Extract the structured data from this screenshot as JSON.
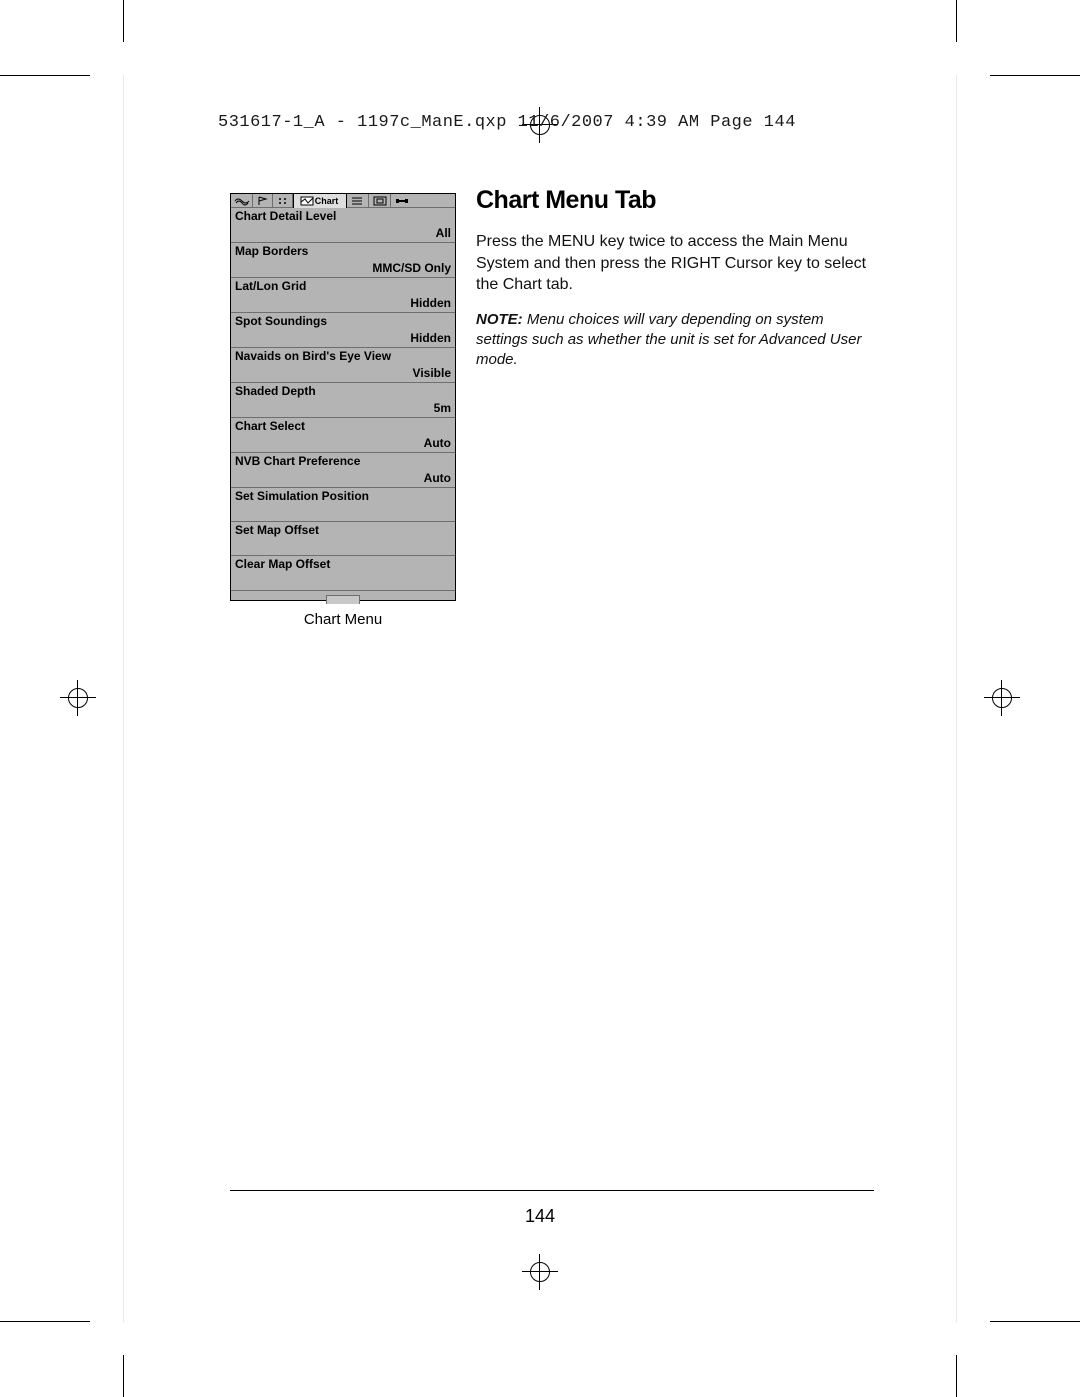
{
  "slug": "531617-1_A - 1197c_ManE.qxp  11/6/2007  4:39 AM  Page 144",
  "title": "Chart Menu Tab",
  "instruction": "Press the MENU key twice to access the Main Menu System and then press the RIGHT Cursor key to select the Chart tab.",
  "note_label": "NOTE:",
  "note_body": "Menu choices will vary depending on system settings such as whether the unit is set for Advanced User mode.",
  "page_number": "144",
  "menu_caption": "Chart Menu",
  "active_tab_label": "Chart",
  "colors": {
    "panel_bg": "#b4b4b4",
    "panel_border": "#000000",
    "divider": "#6e6e6e",
    "active_tab_bg": "#dedede"
  },
  "menu_items": [
    {
      "label": "Chart Detail Level",
      "value": "All"
    },
    {
      "label": "Map Borders",
      "value": "MMC/SD Only"
    },
    {
      "label": "Lat/Lon Grid",
      "value": "Hidden"
    },
    {
      "label": "Spot Soundings",
      "value": "Hidden"
    },
    {
      "label": "Navaids on Bird's Eye View",
      "value": "Visible"
    },
    {
      "label": "Shaded Depth",
      "value": "5m"
    },
    {
      "label": "Chart Select",
      "value": "Auto"
    },
    {
      "label": "NVB Chart Preference",
      "value": "Auto"
    },
    {
      "label": "Set Simulation Position",
      "value": ""
    },
    {
      "label": "Set Map Offset",
      "value": ""
    },
    {
      "label": "Clear Map Offset",
      "value": ""
    }
  ]
}
